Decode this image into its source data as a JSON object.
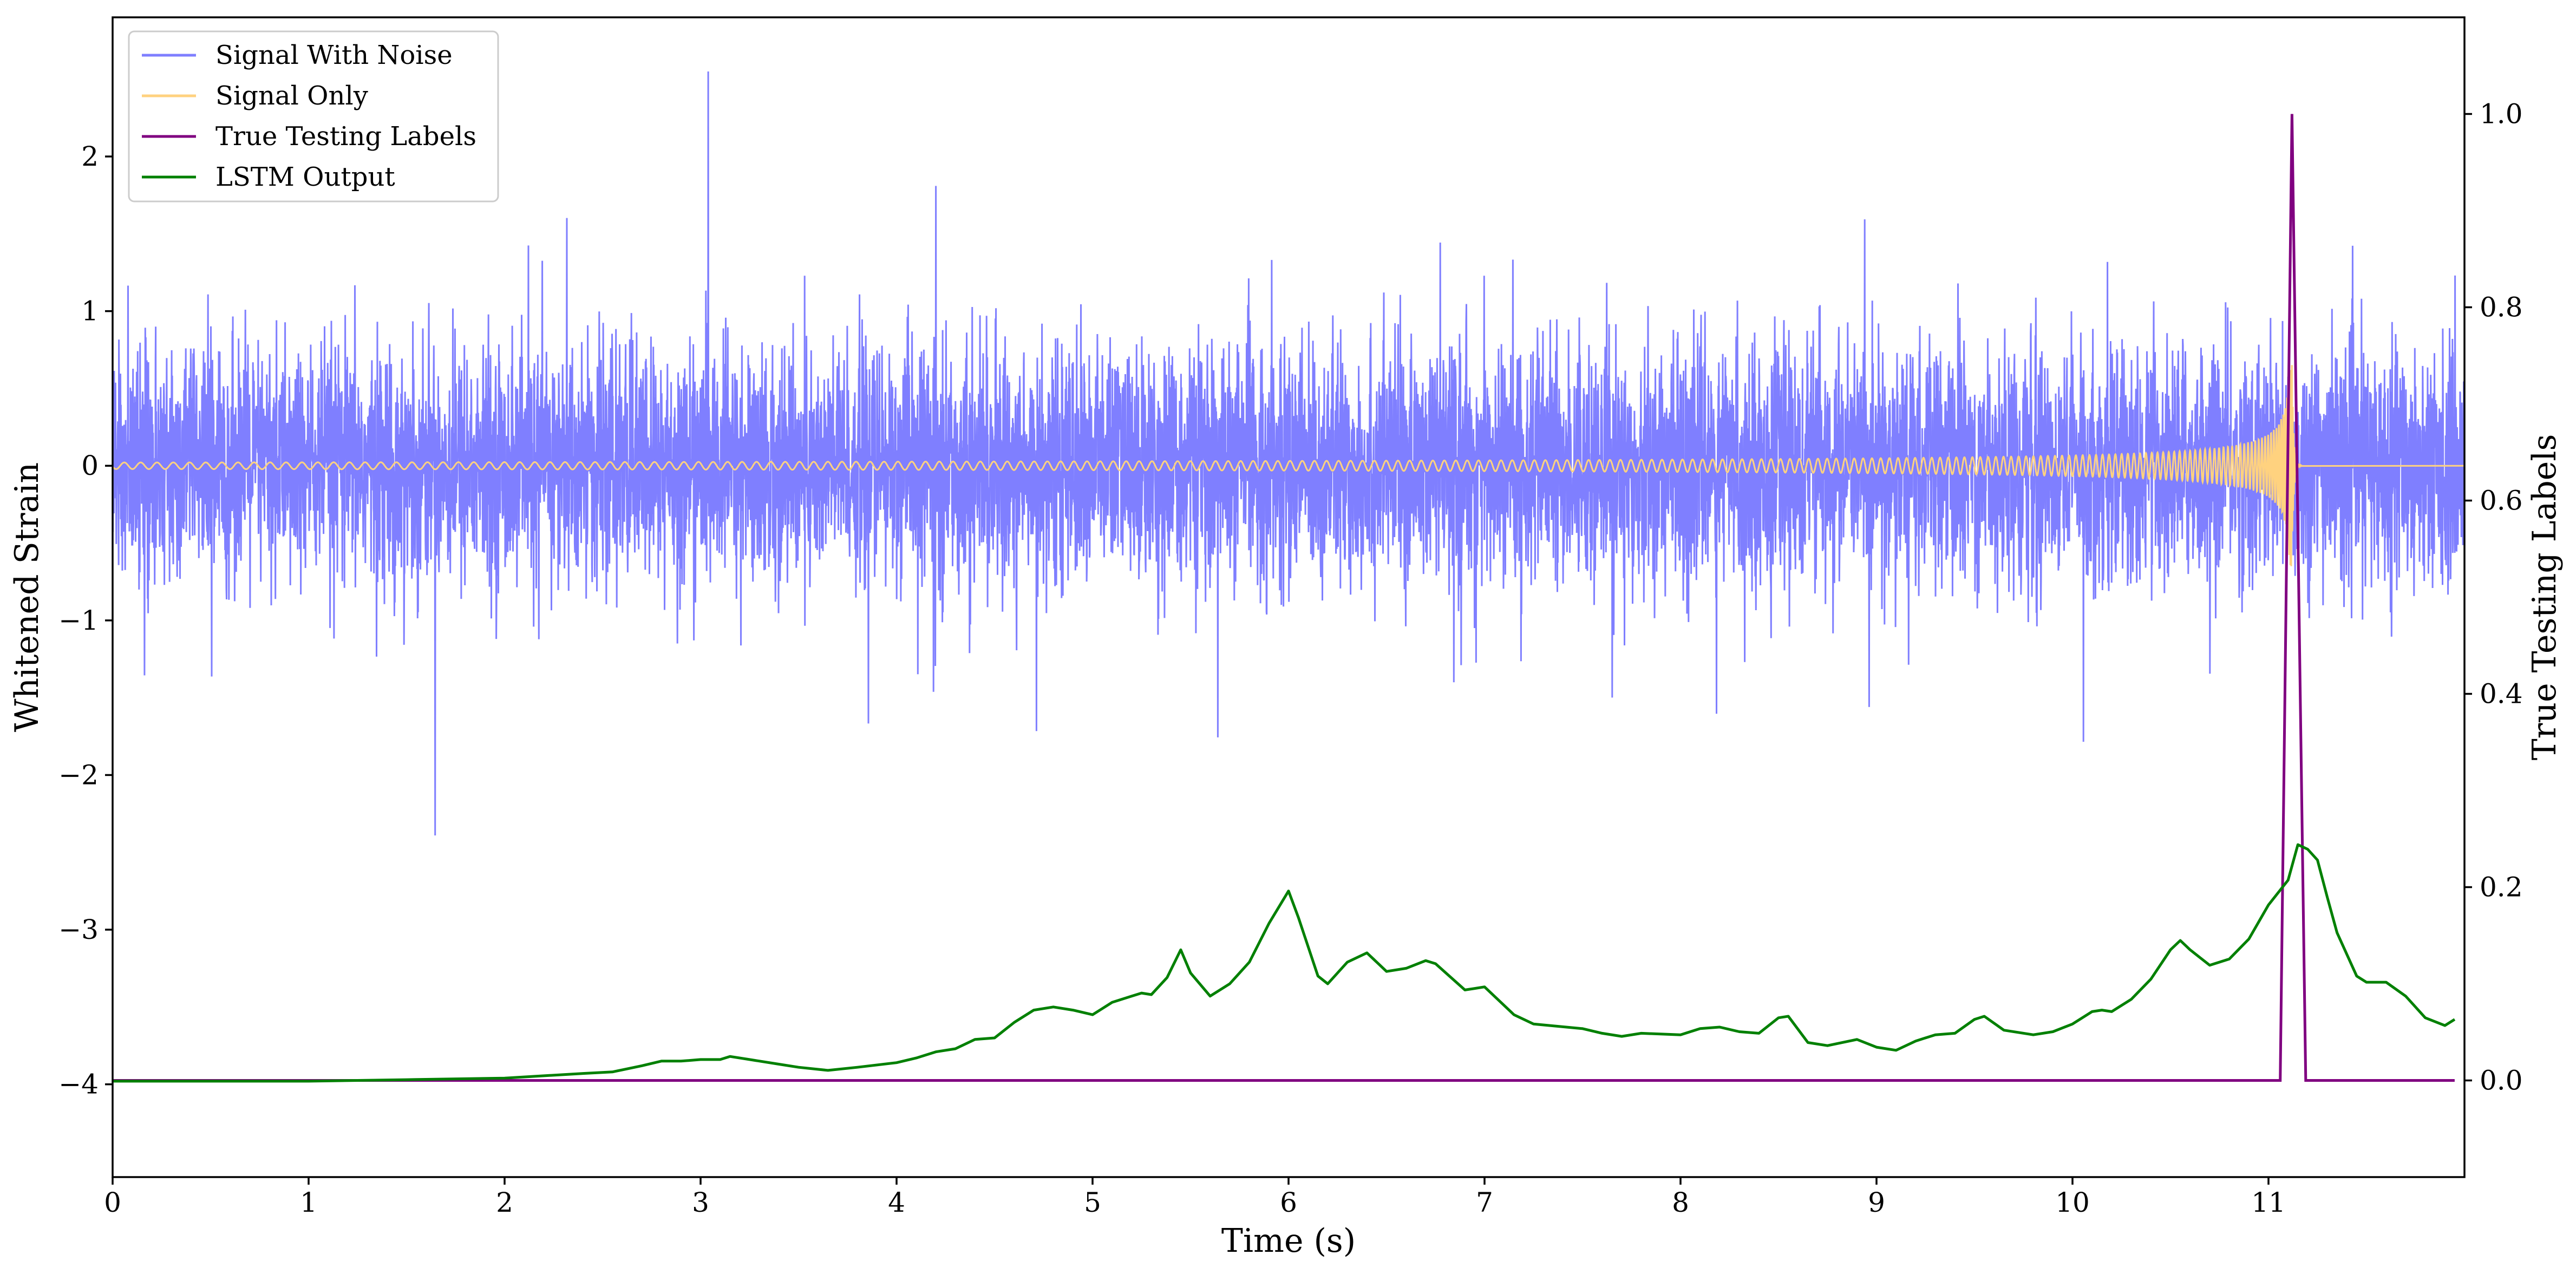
{
  "chart_data": {
    "type": "line",
    "title": "",
    "xlabel": "Time (s)",
    "ylabel": "Whitened Strain",
    "y2label": "True Testing Labels",
    "xlim": [
      0,
      12
    ],
    "ylim": [
      -4.6,
      2.9
    ],
    "y2lim": [
      -0.1,
      1.1
    ],
    "x_ticks": [
      0,
      1,
      2,
      3,
      4,
      5,
      6,
      7,
      8,
      9,
      10,
      11
    ],
    "x_tick_labels": [
      "0",
      "1",
      "2",
      "3",
      "4",
      "5",
      "6",
      "7",
      "8",
      "9",
      "10",
      "11"
    ],
    "y_ticks": [
      -4,
      -3,
      -2,
      -1,
      0,
      1,
      2
    ],
    "y_tick_labels": [
      "−4",
      "−3",
      "−2",
      "−1",
      "0",
      "1",
      "2"
    ],
    "y2_ticks": [
      0.0,
      0.2,
      0.4,
      0.6,
      0.8,
      1.0
    ],
    "y2_tick_labels": [
      "0.0",
      "0.2",
      "0.4",
      "0.6",
      "0.8",
      "1.0"
    ],
    "grid": false,
    "legend_position": "top-left",
    "legend": [
      {
        "label": "Signal With Noise",
        "color": "#7f7fff"
      },
      {
        "label": "Signal Only",
        "color": "#ffd27f"
      },
      {
        "label": "True Testing Labels",
        "color": "#800080"
      },
      {
        "label": "LSTM Output",
        "color": "#008000"
      }
    ],
    "series": [
      {
        "name": "Signal With Noise",
        "axis": "left",
        "color": "#7f7fff",
        "style": "noise",
        "typical_amplitude": 0.6,
        "extreme_range": [
          -2.45,
          2.55
        ]
      },
      {
        "name": "Signal Only",
        "axis": "left",
        "color": "#ffd27f",
        "style": "chirp",
        "merger_time": 11.12,
        "peak_amplitude": 0.65
      },
      {
        "name": "True Testing Labels",
        "axis": "right",
        "color": "#800080",
        "x": [
          0,
          11.06,
          11.12,
          11.19,
          11.95
        ],
        "y": [
          0,
          0,
          1.0,
          0,
          0
        ]
      },
      {
        "name": "LSTM Output",
        "axis": "left",
        "color": "#008000",
        "x": [
          0,
          1.0,
          1.5,
          2.0,
          2.4,
          2.55,
          2.7,
          2.8,
          2.9,
          3.0,
          3.1,
          3.15,
          3.25,
          3.4,
          3.5,
          3.65,
          3.8,
          4.0,
          4.1,
          4.2,
          4.3,
          4.4,
          4.5,
          4.6,
          4.7,
          4.8,
          4.9,
          5.0,
          5.1,
          5.2,
          5.25,
          5.3,
          5.38,
          5.45,
          5.5,
          5.6,
          5.7,
          5.8,
          5.9,
          6.0,
          6.05,
          6.15,
          6.2,
          6.3,
          6.4,
          6.5,
          6.6,
          6.7,
          6.75,
          6.9,
          6.95,
          7.0,
          7.15,
          7.25,
          7.5,
          7.6,
          7.7,
          7.8,
          8.0,
          8.1,
          8.2,
          8.3,
          8.4,
          8.5,
          8.55,
          8.65,
          8.75,
          8.9,
          9.0,
          9.1,
          9.2,
          9.3,
          9.4,
          9.5,
          9.55,
          9.65,
          9.8,
          9.9,
          10.0,
          10.1,
          10.15,
          10.2,
          10.3,
          10.4,
          10.5,
          10.55,
          10.6,
          10.7,
          10.8,
          10.9,
          11.0,
          11.1,
          11.15,
          11.2,
          11.25,
          11.3,
          11.35,
          11.45,
          11.5,
          11.6,
          11.7,
          11.8,
          11.9,
          11.95
        ],
        "y": [
          -3.98,
          -3.98,
          -3.97,
          -3.96,
          -3.93,
          -3.92,
          -3.88,
          -3.85,
          -3.85,
          -3.84,
          -3.84,
          -3.82,
          -3.84,
          -3.87,
          -3.89,
          -3.91,
          -3.89,
          -3.86,
          -3.83,
          -3.79,
          -3.77,
          -3.71,
          -3.7,
          -3.6,
          -3.52,
          -3.5,
          -3.52,
          -3.55,
          -3.47,
          -3.43,
          -3.41,
          -3.42,
          -3.31,
          -3.13,
          -3.28,
          -3.43,
          -3.35,
          -3.21,
          -2.96,
          -2.75,
          -2.92,
          -3.3,
          -3.35,
          -3.21,
          -3.15,
          -3.27,
          -3.25,
          -3.2,
          -3.22,
          -3.39,
          -3.38,
          -3.37,
          -3.55,
          -3.61,
          -3.64,
          -3.67,
          -3.69,
          -3.67,
          -3.68,
          -3.64,
          -3.63,
          -3.66,
          -3.67,
          -3.57,
          -3.56,
          -3.73,
          -3.75,
          -3.71,
          -3.76,
          -3.78,
          -3.72,
          -3.68,
          -3.67,
          -3.58,
          -3.56,
          -3.65,
          -3.68,
          -3.66,
          -3.61,
          -3.53,
          -3.52,
          -3.53,
          -3.45,
          -3.32,
          -3.13,
          -3.07,
          -3.13,
          -3.23,
          -3.19,
          -3.06,
          -2.84,
          -2.68,
          -2.45,
          -2.48,
          -2.55,
          -2.79,
          -3.02,
          -3.3,
          -3.34,
          -3.34,
          -3.43,
          -3.57,
          -3.62,
          -3.58
        ]
      }
    ]
  }
}
